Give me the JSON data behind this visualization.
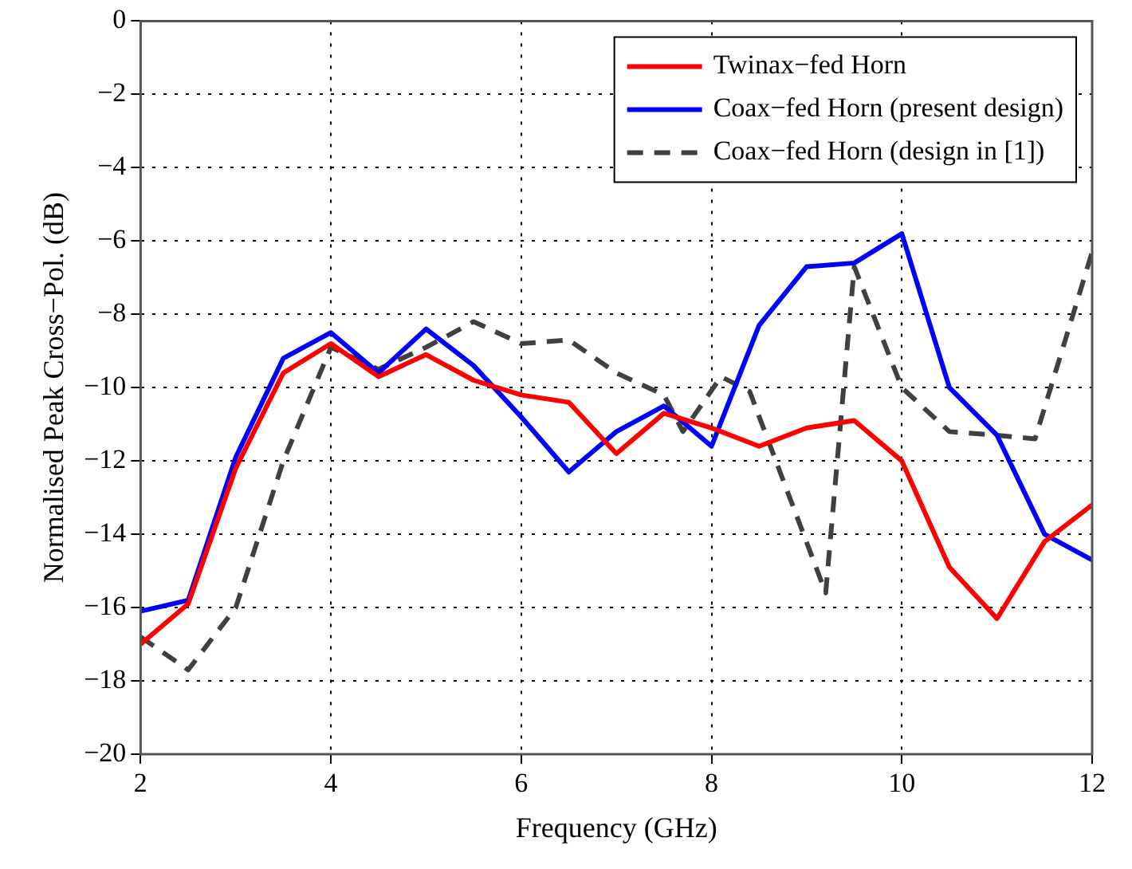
{
  "chart_data": {
    "type": "line",
    "xlabel": "Frequency (GHz)",
    "ylabel": "Normalised Peak Cross−Pol. (dB)",
    "x": [
      2,
      2.5,
      3,
      3.5,
      4,
      4.5,
      5,
      5.5,
      6,
      6.5,
      7,
      7.5,
      8,
      8.5,
      9,
      9.5,
      10,
      10.5,
      11,
      11.5,
      12
    ],
    "series": [
      {
        "name": "Twinax−fed Horn",
        "color": "#ff0000",
        "values": [
          -17,
          -15.9,
          -12.2,
          -9.6,
          -8.8,
          -9.7,
          -9.1,
          -9.8,
          -10.2,
          -10.4,
          -11.8,
          -10.7,
          -11.1,
          -11.6,
          -11.1,
          -10.9,
          -12,
          -14.9,
          -16.3,
          -14.2,
          -13.2
        ]
      },
      {
        "name": "Coax−fed Horn (present design)",
        "color": "#0000ff",
        "values": [
          -16.1,
          -15.8,
          -11.9,
          -9.2,
          -8.5,
          -9.6,
          -8.4,
          -9.4,
          -10.8,
          -12.3,
          -11.2,
          -10.5,
          -11.6,
          -8.3,
          -6.7,
          -6.6,
          -5.8,
          -10,
          -11.3,
          -14,
          -14.7
        ]
      },
      {
        "name": "Coax−fed Horn (design in [1])",
        "color": "#404040",
        "line_style": "dashed",
        "x": [
          2,
          2.5,
          3,
          3.5,
          4,
          4.5,
          5,
          5.5,
          6,
          6.5,
          7,
          7.5,
          7.7,
          8.1,
          8.4,
          9.2,
          9.5,
          10,
          10.5,
          11,
          11.4,
          12
        ],
        "values": [
          -16.8,
          -17.7,
          -16,
          -12,
          -8.9,
          -9.5,
          -8.9,
          -8.2,
          -8.8,
          -8.7,
          -9.6,
          -10.2,
          -11.2,
          -9.7,
          -10.1,
          -15.6,
          -6.7,
          -10,
          -11.2,
          -11.3,
          -11.4,
          -6.3
        ]
      }
    ],
    "xlim": [
      2,
      12
    ],
    "xticks": [
      2,
      4,
      6,
      8,
      10,
      12
    ],
    "ylim": [
      -20,
      0
    ],
    "yticks": [
      -20,
      -18,
      -16,
      -14,
      -12,
      -10,
      -8,
      -6,
      -4,
      -2,
      0
    ],
    "grid": true,
    "legend": "top right",
    "marker": "none"
  }
}
